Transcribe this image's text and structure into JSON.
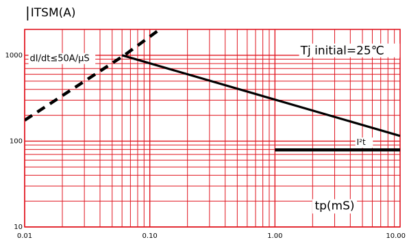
{
  "chart_data": {
    "type": "line",
    "ylabel": "ITSM(A)",
    "xlabel": "tp(mS)",
    "x_scale": "log",
    "y_scale": "log",
    "xlim": [
      0.01,
      10.0
    ],
    "ylim": [
      10,
      2000
    ],
    "x_ticks": [
      {
        "value": 0.01,
        "label": "0.01"
      },
      {
        "value": 0.1,
        "label": "0.10"
      },
      {
        "value": 1.0,
        "label": "1.00"
      },
      {
        "value": 10.0,
        "label": "10.00"
      }
    ],
    "y_ticks": [
      {
        "value": 10,
        "label": "10"
      },
      {
        "value": 100,
        "label": "100"
      },
      {
        "value": 1000,
        "label": "1000"
      }
    ],
    "grid": true,
    "grid_color": "#e0141e",
    "series": [
      {
        "style": "dashed",
        "color": "#000000",
        "points": [
          [
            0.01,
            175
          ],
          [
            0.0626,
            1000
          ],
          [
            0.12,
            2000
          ]
        ]
      },
      {
        "style": "solid",
        "color": "#000000",
        "points": [
          [
            0.06,
            1000
          ],
          [
            10.0,
            115
          ]
        ]
      },
      {
        "style": "solid-thick",
        "color": "#000000",
        "points": [
          [
            1.0,
            79
          ],
          [
            10.0,
            79
          ]
        ]
      }
    ],
    "annotations": [
      {
        "text": "Tj initial=25℃",
        "x": 1.6,
        "y": 1020
      },
      {
        "text": "dI/dt≤50A/μS",
        "x": 0.011,
        "y": 850
      },
      {
        "text": "I²t",
        "x": 4.5,
        "y": 90
      }
    ]
  }
}
